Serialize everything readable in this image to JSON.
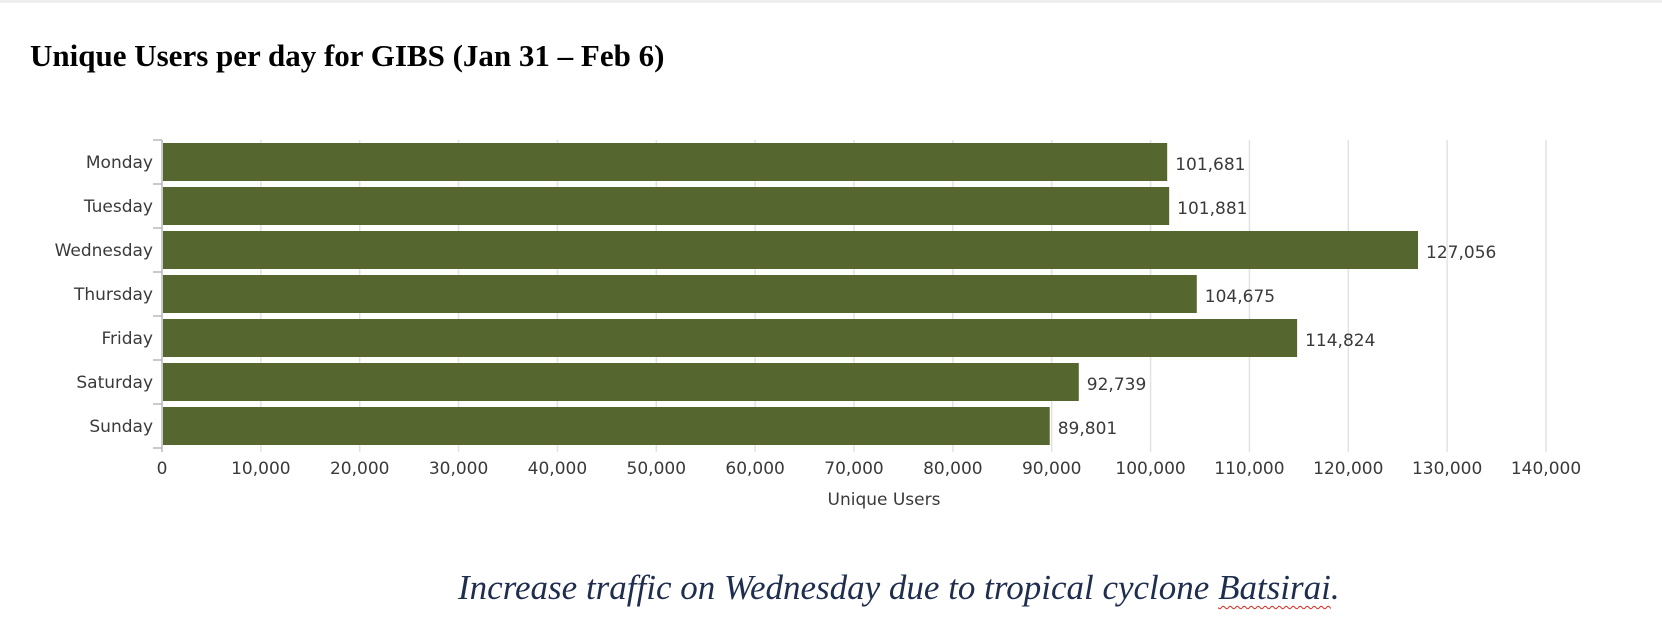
{
  "title": "Unique Users per day for GIBS (Jan 31 – Feb 6)",
  "caption": {
    "prefix": "Increase traffic on Wednesday due to tropical cyclone ",
    "flagged_word": "Batsirai",
    "suffix": "."
  },
  "colors": {
    "bar": "#55672e",
    "gridline": "#e2e2e2",
    "axis": "#b8b8b8",
    "text": "#3a3a3a",
    "caption": "#1f2d4e"
  },
  "chart_data": {
    "type": "bar",
    "orientation": "horizontal",
    "categories": [
      "Monday",
      "Tuesday",
      "Wednesday",
      "Thursday",
      "Friday",
      "Saturday",
      "Sunday"
    ],
    "values": [
      101681,
      101881,
      127056,
      104675,
      114824,
      92739,
      89801
    ],
    "data_labels": [
      "101,681",
      "101,881",
      "127,056",
      "104,675",
      "114,824",
      "92,739",
      "89,801"
    ],
    "xlabel": "Unique Users",
    "ylabel": "",
    "xlim": [
      0,
      140000
    ],
    "x_ticks": [
      0,
      10000,
      20000,
      30000,
      40000,
      50000,
      60000,
      70000,
      80000,
      90000,
      100000,
      110000,
      120000,
      130000,
      140000
    ],
    "x_tick_labels": [
      "0",
      "10,000",
      "20,000",
      "30,000",
      "40,000",
      "50,000",
      "60,000",
      "70,000",
      "80,000",
      "90,000",
      "100,000",
      "110,000",
      "120,000",
      "130,000",
      "140,000"
    ],
    "grid": true,
    "legend": "none"
  }
}
